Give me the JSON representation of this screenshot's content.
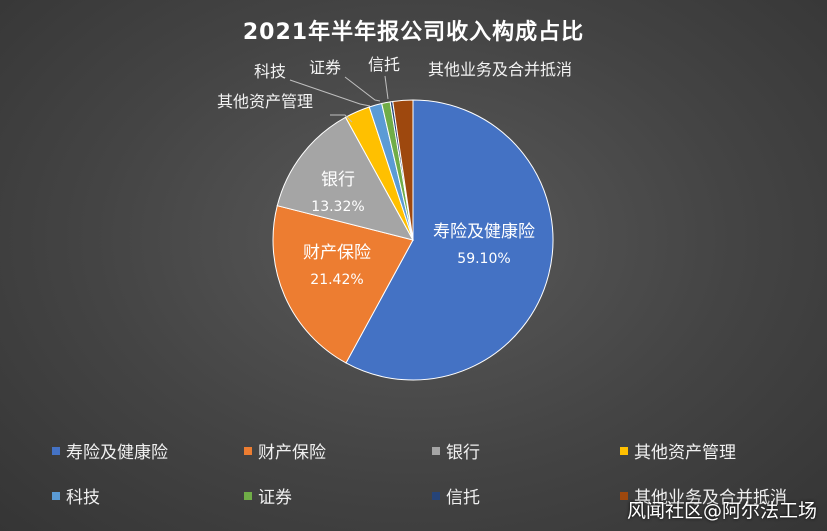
{
  "chart_data": {
    "type": "pie",
    "title": "2021年半年报公司收入构成占比",
    "categories": [
      "寿险及健康险",
      "财产保险",
      "银行",
      "其他资产管理",
      "科技",
      "证券",
      "信托",
      "其他业务及合并抵消"
    ],
    "values": [
      59.1,
      21.42,
      13.32,
      3.0,
      1.5,
      1.0,
      0.3,
      2.36
    ],
    "value_labels": [
      "59.10%",
      "21.42%",
      "13.32%",
      "",
      "",
      "",
      "",
      ""
    ],
    "colors": [
      "#4472C4",
      "#ED7D31",
      "#A5A5A5",
      "#FFC000",
      "#5B9BD5",
      "#70AD47",
      "#264478",
      "#9E480E"
    ],
    "legend_position": "bottom"
  },
  "watermark": "风闻社区@阿尔法工场"
}
